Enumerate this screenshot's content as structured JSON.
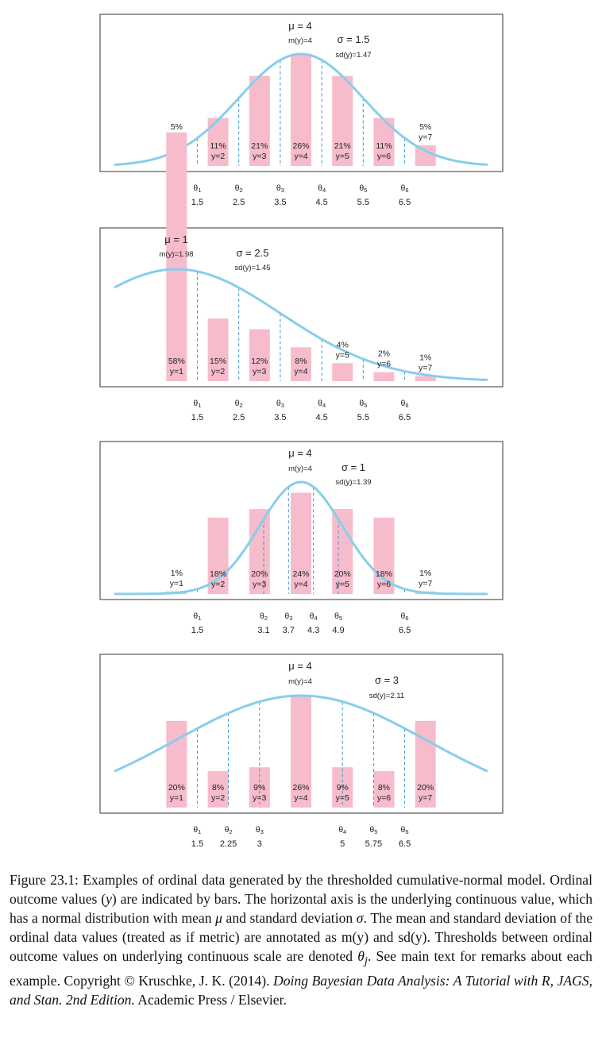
{
  "colors": {
    "bar": "#f7bccb",
    "curve": "#87ceeb",
    "threshold": "#3a9ad9",
    "frame": "#333333"
  },
  "chart_data": [
    {
      "type": "bar",
      "mu_label": "μ = 4",
      "sigma_label": "σ = 1.5",
      "m_label": "m(y)=4",
      "sd_label": "sd(y)=1.47",
      "mu": 4,
      "sigma": 1.5,
      "xlim": [
        -0.5,
        8.5
      ],
      "thresholds": [
        1.5,
        2.5,
        3.5,
        4.5,
        5.5,
        6.5
      ],
      "threshold_labels": [
        "1.5",
        "2.5",
        "3.5",
        "4.5",
        "5.5",
        "6.5"
      ],
      "theta_labels": [
        "θ1",
        "θ2",
        "θ3",
        "θ4",
        "θ5",
        "θ6"
      ],
      "bars": [
        {
          "y": 1,
          "prob": 0.048,
          "pct_label": "5%",
          "y_label": "y=1"
        },
        {
          "y": 2,
          "prob": 0.112,
          "pct_label": "11%",
          "y_label": "y=2"
        },
        {
          "y": 3,
          "prob": 0.21,
          "pct_label": "21%",
          "y_label": "y=3"
        },
        {
          "y": 4,
          "prob": 0.261,
          "pct_label": "26%",
          "y_label": "y=4"
        },
        {
          "y": 5,
          "prob": 0.21,
          "pct_label": "21%",
          "y_label": "y=5"
        },
        {
          "y": 6,
          "prob": 0.112,
          "pct_label": "11%",
          "y_label": "y=6"
        },
        {
          "y": 7,
          "prob": 0.048,
          "pct_label": "5%",
          "y_label": "y=7"
        }
      ]
    },
    {
      "type": "bar",
      "mu_label": "μ = 1",
      "sigma_label": "σ = 2.5",
      "m_label": "m(y)=1.98",
      "sd_label": "sd(y)=1.45",
      "mu": 1,
      "sigma": 2.5,
      "xlim": [
        -0.5,
        8.5
      ],
      "thresholds": [
        1.5,
        2.5,
        3.5,
        4.5,
        5.5,
        6.5
      ],
      "threshold_labels": [
        "1.5",
        "2.5",
        "3.5",
        "4.5",
        "5.5",
        "6.5"
      ],
      "theta_labels": [
        "θ1",
        "θ2",
        "θ3",
        "θ4",
        "θ5",
        "θ6"
      ],
      "bars": [
        {
          "y": 1,
          "prob": 0.58,
          "pct_label": "58%",
          "y_label": "y=1"
        },
        {
          "y": 2,
          "prob": 0.146,
          "pct_label": "15%",
          "y_label": "y=2"
        },
        {
          "y": 3,
          "prob": 0.121,
          "pct_label": "12%",
          "y_label": "y=3"
        },
        {
          "y": 4,
          "prob": 0.079,
          "pct_label": "8%",
          "y_label": "y=4"
        },
        {
          "y": 5,
          "prob": 0.042,
          "pct_label": "4%",
          "y_label": "y=5"
        },
        {
          "y": 6,
          "prob": 0.021,
          "pct_label": "2%",
          "y_label": "y=6"
        },
        {
          "y": 7,
          "prob": 0.012,
          "pct_label": "1%",
          "y_label": "y=7"
        }
      ]
    },
    {
      "type": "bar",
      "mu_label": "μ = 4",
      "sigma_label": "σ = 1",
      "m_label": "m(y)=4",
      "sd_label": "sd(y)=1.39",
      "mu": 4,
      "sigma": 1,
      "xlim": [
        -0.5,
        8.5
      ],
      "thresholds": [
        1.5,
        3.1,
        3.7,
        4.3,
        4.9,
        6.5
      ],
      "threshold_labels": [
        "1.5",
        "3.1",
        "3.7",
        "4.3",
        "4.9",
        "6.5"
      ],
      "theta_labels": [
        "θ1",
        "θ2",
        "θ3",
        "θ4",
        "θ5",
        "θ6"
      ],
      "bars": [
        {
          "y": 1,
          "prob": 0.006,
          "pct_label": "1%",
          "y_label": "y=1"
        },
        {
          "y": 2,
          "prob": 0.178,
          "pct_label": "18%",
          "y_label": "y=2"
        },
        {
          "y": 3,
          "prob": 0.198,
          "pct_label": "20%",
          "y_label": "y=3"
        },
        {
          "y": 4,
          "prob": 0.236,
          "pct_label": "24%",
          "y_label": "y=4"
        },
        {
          "y": 5,
          "prob": 0.198,
          "pct_label": "20%",
          "y_label": "y=5"
        },
        {
          "y": 6,
          "prob": 0.178,
          "pct_label": "18%",
          "y_label": "y=6"
        },
        {
          "y": 7,
          "prob": 0.006,
          "pct_label": "1%",
          "y_label": "y=7"
        }
      ]
    },
    {
      "type": "bar",
      "mu_label": "μ = 4",
      "sigma_label": "σ = 3",
      "m_label": "m(y)=4",
      "sd_label": "sd(y)=2.11",
      "mu": 4,
      "sigma": 3,
      "xlim": [
        -0.5,
        8.5
      ],
      "thresholds": [
        1.5,
        2.25,
        3,
        5,
        5.75,
        6.5
      ],
      "threshold_labels": [
        "1.5",
        "2.25",
        "3",
        "5",
        "5.75",
        "6.5"
      ],
      "theta_labels": [
        "θ1",
        "θ2",
        "θ3",
        "θ4",
        "θ5",
        "θ6"
      ],
      "bars": [
        {
          "y": 1,
          "prob": 0.202,
          "pct_label": "20%",
          "y_label": "y=1"
        },
        {
          "y": 2,
          "prob": 0.085,
          "pct_label": "8%",
          "y_label": "y=2"
        },
        {
          "y": 3,
          "prob": 0.094,
          "pct_label": "9%",
          "y_label": "y=3"
        },
        {
          "y": 4,
          "prob": 0.261,
          "pct_label": "26%",
          "y_label": "y=4"
        },
        {
          "y": 5,
          "prob": 0.094,
          "pct_label": "9%",
          "y_label": "y=5"
        },
        {
          "y": 6,
          "prob": 0.085,
          "pct_label": "8%",
          "y_label": "y=6"
        },
        {
          "y": 7,
          "prob": 0.202,
          "pct_label": "20%",
          "y_label": "y=7"
        }
      ]
    }
  ],
  "caption": {
    "part1": "Figure 23.1: Examples of ordinal data generated by the thresholded cumulative-normal model. Ordinal outcome values (",
    "y_var": "y",
    "part2": ") are indicated by bars. The horizontal axis is the underlying continuous value, which has a normal distribution with mean ",
    "mu_sym": "μ",
    "part3": " and standard deviation ",
    "sigma_sym": "σ",
    "part4": ". The mean and standard deviation of the ordinal data values (treated as if metric) are annotated as m(y) and sd(y). Thresholds between ordinal outcome values on underlying continuous scale are denoted ",
    "theta_sym": "θ",
    "theta_sub": "j",
    "part5": ". See main text for remarks about each example.    Copyright © Kruschke, J. K. (2014). ",
    "book_title": "Doing Bayesian Data Analysis: A Tutorial with R, JAGS, and Stan. 2nd Edition.",
    "part6": " Academic Press / Elsevier."
  }
}
